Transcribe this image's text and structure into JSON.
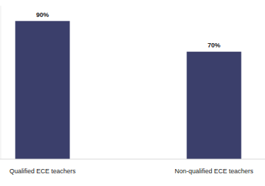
{
  "chart_data": {
    "type": "bar",
    "categories": [
      "Qualified ECE teachers",
      "Non-qualified ECE teachers"
    ],
    "values": [
      90,
      70
    ],
    "value_labels": [
      "90%",
      "70%"
    ],
    "color": "#3b3f6b",
    "ylim": [
      0,
      100
    ],
    "data_labels": true,
    "tick_labels": "x",
    "grid": false
  }
}
